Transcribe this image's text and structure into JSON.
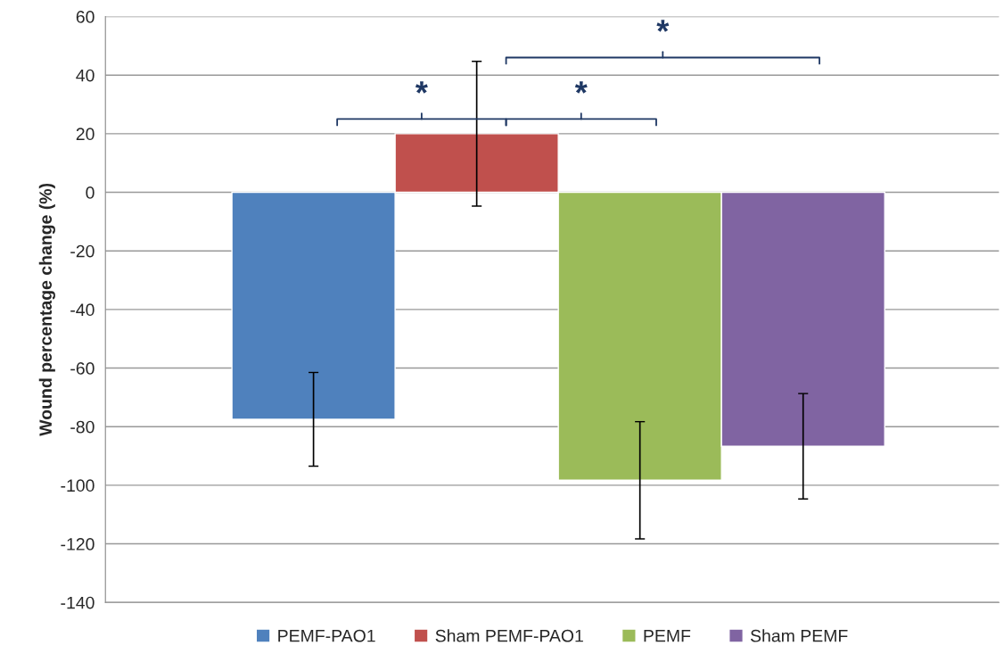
{
  "chart_data": {
    "type": "bar",
    "ylabel": "Wound percentage change (%)",
    "categories": [
      null
    ],
    "series": [
      {
        "name": "PEMF-PAO1",
        "color": "#4f81bd",
        "values": [
          -77.5
        ],
        "errors": [
          16
        ]
      },
      {
        "name": "Sham PEMF-PAO1",
        "color": "#c0504d",
        "values": [
          20
        ],
        "errors": [
          24.7
        ]
      },
      {
        "name": "PEMF",
        "color": "#9bbb59",
        "values": [
          -98.3
        ],
        "errors": [
          20
        ]
      },
      {
        "name": "Sham PEMF",
        "color": "#8064a2",
        "values": [
          -86.7
        ],
        "errors": [
          18
        ]
      }
    ],
    "annotations": [
      "*",
      "*",
      "*"
    ],
    "ylim": [
      -140,
      60
    ],
    "yticks": [
      -140,
      -120,
      -100,
      -80,
      -60,
      -40,
      -20,
      0,
      20,
      40,
      60
    ],
    "grid": "y",
    "legend": "bottom"
  }
}
